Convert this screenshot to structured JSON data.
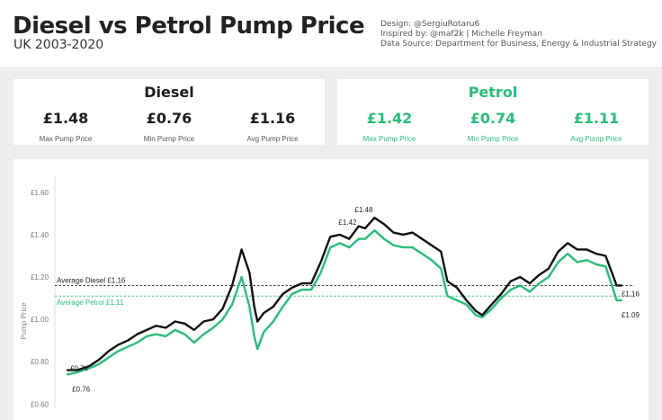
{
  "header": {
    "title": "Diesel vs Petrol Pump Price",
    "subtitle": "UK 2003-2020",
    "credits": [
      "Design: @SergiuRotaru6",
      "Inspired by: @maf2k | Michelle Freyman",
      "Data Source: Department for Business, Energy & Industrial Strategy"
    ]
  },
  "cards": {
    "diesel": {
      "title": "Diesel",
      "color": "#1c1c1c",
      "stats": [
        {
          "value": "£1.48",
          "label": "Max Pump Price"
        },
        {
          "value": "£0.76",
          "label": "Min Pump Price"
        },
        {
          "value": "£1.16",
          "label": "Avg Pump Price"
        }
      ]
    },
    "petrol": {
      "title": "Petrol",
      "color": "#23c07a",
      "stats": [
        {
          "value": "£1.42",
          "label": "Max Pump Price"
        },
        {
          "value": "£0.74",
          "label": "Min Pump Price"
        },
        {
          "value": "£1.11",
          "label": "Avg Pump Price"
        }
      ]
    }
  },
  "chart_data": {
    "type": "line",
    "ylabel": "Pump Price",
    "xlabel": "",
    "ylim": [
      0.58,
      1.68
    ],
    "xlim": [
      2002.6,
      2020.9
    ],
    "yticks": [
      {
        "value": 0.6,
        "label": "£0.60"
      },
      {
        "value": 0.8,
        "label": "£0.80"
      },
      {
        "value": 1.0,
        "label": "£1.00"
      },
      {
        "value": 1.2,
        "label": "£1.20"
      },
      {
        "value": 1.4,
        "label": "£1.40"
      },
      {
        "value": 1.6,
        "label": "£1.60"
      }
    ],
    "grid": false,
    "series": [
      {
        "name": "Diesel",
        "color": "#111111",
        "x": [
          2003.0,
          2003.3,
          2003.7,
          2004.0,
          2004.3,
          2004.6,
          2004.9,
          2005.2,
          2005.5,
          2005.8,
          2006.1,
          2006.4,
          2006.7,
          2007.0,
          2007.3,
          2007.6,
          2007.9,
          2008.2,
          2008.5,
          2008.75,
          2008.9,
          2009.0,
          2009.2,
          2009.5,
          2009.8,
          2010.1,
          2010.4,
          2010.7,
          2011.0,
          2011.3,
          2011.6,
          2011.9,
          2012.2,
          2012.4,
          2012.7,
          2013.0,
          2013.3,
          2013.6,
          2013.9,
          2014.2,
          2014.5,
          2014.8,
          2015.0,
          2015.3,
          2015.6,
          2015.9,
          2016.1,
          2016.4,
          2016.7,
          2017.0,
          2017.3,
          2017.6,
          2017.9,
          2018.2,
          2018.5,
          2018.8,
          2019.1,
          2019.4,
          2019.7,
          2020.0,
          2020.2,
          2020.35,
          2020.5
        ],
        "y": [
          0.76,
          0.76,
          0.78,
          0.81,
          0.85,
          0.88,
          0.9,
          0.93,
          0.95,
          0.97,
          0.96,
          0.99,
          0.98,
          0.95,
          0.99,
          1.0,
          1.05,
          1.16,
          1.33,
          1.22,
          1.06,
          0.99,
          1.03,
          1.06,
          1.12,
          1.15,
          1.17,
          1.17,
          1.27,
          1.39,
          1.4,
          1.38,
          1.44,
          1.43,
          1.48,
          1.45,
          1.41,
          1.4,
          1.41,
          1.38,
          1.35,
          1.32,
          1.18,
          1.15,
          1.09,
          1.04,
          1.02,
          1.07,
          1.12,
          1.18,
          1.2,
          1.17,
          1.21,
          1.24,
          1.32,
          1.36,
          1.33,
          1.33,
          1.31,
          1.3,
          1.22,
          1.16,
          1.16
        ]
      },
      {
        "name": "Petrol",
        "color": "#23c07a",
        "x": [
          2003.0,
          2003.3,
          2003.7,
          2004.0,
          2004.3,
          2004.6,
          2004.9,
          2005.2,
          2005.5,
          2005.8,
          2006.1,
          2006.4,
          2006.7,
          2007.0,
          2007.3,
          2007.6,
          2007.9,
          2008.2,
          2008.5,
          2008.75,
          2008.9,
          2009.0,
          2009.2,
          2009.5,
          2009.8,
          2010.1,
          2010.4,
          2010.7,
          2011.0,
          2011.3,
          2011.6,
          2011.9,
          2012.2,
          2012.4,
          2012.7,
          2013.0,
          2013.3,
          2013.6,
          2013.9,
          2014.2,
          2014.5,
          2014.8,
          2015.0,
          2015.3,
          2015.6,
          2015.9,
          2016.1,
          2016.4,
          2016.7,
          2017.0,
          2017.3,
          2017.6,
          2017.9,
          2018.2,
          2018.5,
          2018.8,
          2019.1,
          2019.4,
          2019.7,
          2020.0,
          2020.2,
          2020.35,
          2020.5
        ],
        "y": [
          0.74,
          0.75,
          0.77,
          0.79,
          0.82,
          0.85,
          0.87,
          0.89,
          0.92,
          0.93,
          0.92,
          0.95,
          0.93,
          0.89,
          0.93,
          0.96,
          1.0,
          1.07,
          1.2,
          1.06,
          0.92,
          0.86,
          0.94,
          0.99,
          1.06,
          1.12,
          1.14,
          1.14,
          1.22,
          1.34,
          1.36,
          1.34,
          1.38,
          1.38,
          1.42,
          1.38,
          1.35,
          1.34,
          1.34,
          1.31,
          1.28,
          1.24,
          1.11,
          1.09,
          1.07,
          1.02,
          1.01,
          1.05,
          1.1,
          1.14,
          1.16,
          1.13,
          1.17,
          1.2,
          1.27,
          1.31,
          1.27,
          1.28,
          1.26,
          1.25,
          1.16,
          1.09,
          1.09
        ]
      }
    ],
    "averages": [
      {
        "label": "Average Diesel £1.16",
        "value": 1.16,
        "color": "#222222"
      },
      {
        "label": "Average Petrol £1.11",
        "value": 1.11,
        "color": "#23c07a"
      }
    ],
    "annotations": [
      {
        "text": "£0.74",
        "x": 2003.0,
        "y": 0.74
      },
      {
        "text": "£0.76",
        "x": 2003.0,
        "y": 0.76
      },
      {
        "text": "£1.42",
        "x": 2012.7,
        "y": 1.42
      },
      {
        "text": "£1.48",
        "x": 2012.7,
        "y": 1.48
      },
      {
        "text": "£1.16",
        "x": 2020.5,
        "y": 1.16
      },
      {
        "text": "£1.09",
        "x": 2020.5,
        "y": 1.09
      }
    ]
  }
}
